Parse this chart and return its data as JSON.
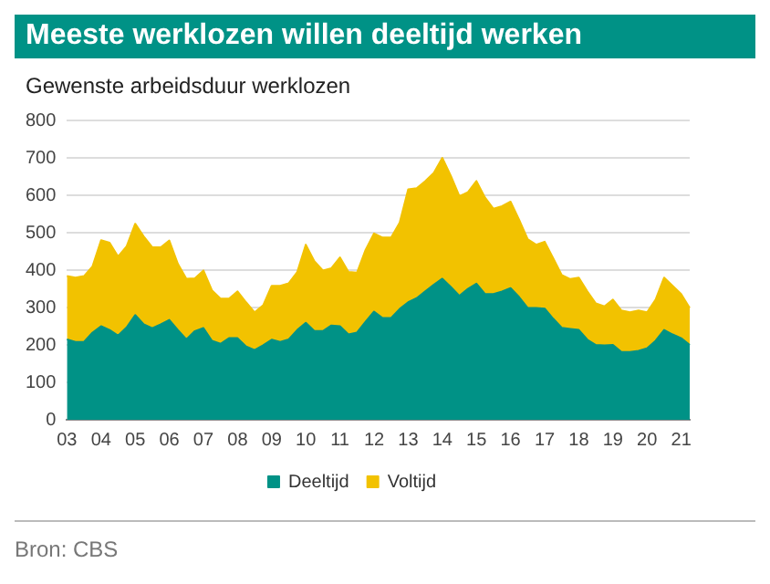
{
  "chart_data": {
    "type": "area",
    "title": "Meeste werklozen willen deeltijd werken",
    "subtitle": "Gewenste arbeidsduur werklozen",
    "categories": [
      "03",
      null,
      null,
      null,
      "04",
      null,
      null,
      null,
      "05",
      null,
      null,
      null,
      "06",
      null,
      null,
      null,
      "07",
      null,
      null,
      null,
      "08",
      null,
      null,
      null,
      "09",
      null,
      null,
      null,
      "10",
      null,
      null,
      null,
      "11",
      null,
      null,
      null,
      "12",
      null,
      null,
      null,
      "13",
      null,
      null,
      null,
      "14",
      null,
      null,
      null,
      "15",
      null,
      null,
      null,
      "16",
      null,
      null,
      null,
      "17",
      null,
      null,
      null,
      "18",
      null,
      null,
      null,
      "19",
      null,
      null,
      null,
      "20",
      null,
      null,
      null,
      "21",
      null
    ],
    "series": [
      {
        "name": "Deeltijd",
        "color": "#009286",
        "values": [
          215,
          208,
          208,
          233,
          250,
          240,
          225,
          247,
          280,
          255,
          245,
          255,
          267,
          240,
          215,
          237,
          245,
          211,
          203,
          218,
          218,
          196,
          186,
          199,
          214,
          208,
          215,
          240,
          259,
          237,
          237,
          252,
          250,
          228,
          233,
          262,
          289,
          272,
          272,
          296,
          314,
          325,
          343,
          361,
          377,
          355,
          331,
          350,
          364,
          336,
          336,
          343,
          352,
          328,
          299,
          299,
          297,
          270,
          246,
          243,
          240,
          214,
          200,
          199,
          200,
          181,
          181,
          184,
          191,
          211,
          240,
          228,
          218,
          200
        ]
      },
      {
        "name": "Voltijd",
        "color": "#f2c200",
        "values": [
          169,
          172,
          176,
          177,
          230,
          233,
          211,
          217,
          244,
          235,
          216,
          206,
          212,
          177,
          162,
          141,
          154,
          135,
          121,
          106,
          125,
          118,
          101,
          107,
          144,
          150,
          150,
          155,
          209,
          187,
          162,
          153,
          184,
          167,
          160,
          192,
          209,
          215,
          215,
          231,
          302,
          294,
          295,
          299,
          323,
          297,
          267,
          258,
          274,
          258,
          228,
          228,
          231,
          207,
          184,
          169,
          179,
          162,
          141,
          133,
          140,
          129,
          111,
          104,
          121,
          111,
          106,
          108,
          96,
          110,
          140,
          130,
          118,
          99
        ]
      }
    ],
    "stacked": true,
    "ylim": [
      0,
      800
    ],
    "yticks": [
      0,
      100,
      200,
      300,
      400,
      500,
      600,
      700,
      800
    ],
    "grid": "y",
    "legend": "bottom",
    "marker": "none",
    "annotations": [
      "Bron: CBS"
    ]
  }
}
